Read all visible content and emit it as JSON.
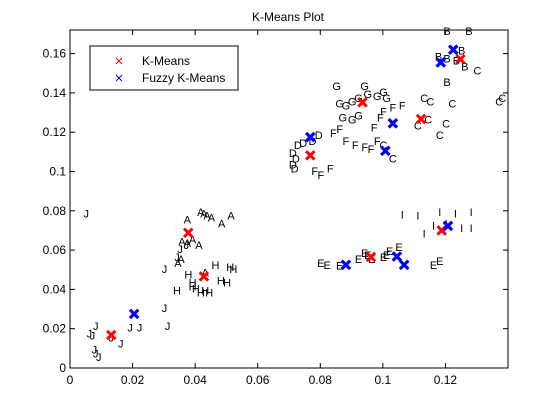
{
  "chart_data": {
    "type": "scatter",
    "title": "K-Means Plot",
    "xlabel": "",
    "ylabel": "",
    "xlim": [
      0,
      0.14
    ],
    "ylim": [
      0,
      0.172
    ],
    "xticks": [
      0,
      0.02,
      0.04,
      0.06,
      0.08,
      0.1,
      0.12
    ],
    "xtick_labels": [
      "0",
      "0.02",
      "0.04",
      "0.06",
      "0.08",
      "0.1",
      "0.12"
    ],
    "yticks": [
      0,
      0.02,
      0.04,
      0.06,
      0.08,
      0.1,
      0.12,
      0.14,
      0.16
    ],
    "ytick_labels": [
      "0",
      "0.02",
      "0.04",
      "0.06",
      "0.08",
      "0.1",
      "0.12",
      "0.14",
      "0.16"
    ],
    "grid": false,
    "legend_position": "top-left",
    "series": [
      {
        "name": "K-Means",
        "marker": "x",
        "color": "#ff0000",
        "x": [
          0.0132,
          0.0378,
          0.0428,
          0.0768,
          0.0935,
          0.0962,
          0.1122,
          0.1188,
          0.1248
        ],
        "y": [
          0.0168,
          0.0688,
          0.0466,
          0.1082,
          0.1352,
          0.0565,
          0.1267,
          0.07,
          0.1571
        ]
      },
      {
        "name": "Fuzzy K-Means",
        "marker": "x",
        "color": "#0000ff",
        "x": [
          0.0205,
          0.0768,
          0.0882,
          0.1008,
          0.1032,
          0.1045,
          0.1068,
          0.1185,
          0.1208,
          0.1225
        ],
        "y": [
          0.0275,
          0.1175,
          0.0525,
          0.1105,
          0.1245,
          0.0567,
          0.0525,
          0.1555,
          0.0723,
          0.162
        ]
      }
    ],
    "point_labels": {
      "A": [
        [
          0.0375,
          0.0755
        ],
        [
          0.0418,
          0.0795
        ],
        [
          0.0428,
          0.0785
        ],
        [
          0.0438,
          0.0775
        ],
        [
          0.0452,
          0.0765
        ],
        [
          0.0485,
          0.0735
        ],
        [
          0.0515,
          0.0775
        ],
        [
          0.0358,
          0.0645
        ],
        [
          0.0375,
          0.0635
        ],
        [
          0.0392,
          0.0655
        ],
        [
          0.0345,
          0.0535
        ],
        [
          0.0355,
          0.0555
        ],
        [
          0.0412,
          0.0625
        ],
        [
          0.0432,
          0.0485
        ]
      ],
      "B": [
        [
          0.1205,
          0.1715
        ],
        [
          0.1275,
          0.1715
        ],
        [
          0.1178,
          0.1585
        ],
        [
          0.1205,
          0.1575
        ],
        [
          0.1235,
          0.1565
        ],
        [
          0.1252,
          0.1615
        ],
        [
          0.1262,
          0.1535
        ],
        [
          0.1205,
          0.1455
        ]
      ],
      "C": [
        [
          0.1302,
          0.1515
        ],
        [
          0.1132,
          0.1375
        ],
        [
          0.1152,
          0.1355
        ],
        [
          0.1222,
          0.1345
        ],
        [
          0.1145,
          0.1265
        ],
        [
          0.1112,
          0.1235
        ],
        [
          0.1182,
          0.1185
        ],
        [
          0.1202,
          0.1245
        ],
        [
          0.1002,
          0.1135
        ],
        [
          0.1032,
          0.1065
        ],
        [
          0.1372,
          0.1355
        ],
        [
          0.1382,
          0.1375
        ]
      ],
      "D": [
        [
          0.0728,
          0.1135
        ],
        [
          0.0745,
          0.1145
        ],
        [
          0.0775,
          0.1155
        ],
        [
          0.0795,
          0.1185
        ],
        [
          0.0712,
          0.1095
        ],
        [
          0.0722,
          0.1065
        ],
        [
          0.0712,
          0.1035
        ],
        [
          0.0718,
          0.1015
        ]
      ],
      "E": [
        [
          0.0802,
          0.0535
        ],
        [
          0.0822,
          0.0525
        ],
        [
          0.0862,
          0.0522
        ],
        [
          0.0922,
          0.0555
        ],
        [
          0.0942,
          0.0585
        ],
        [
          0.0952,
          0.0575
        ],
        [
          0.0965,
          0.0555
        ],
        [
          0.1002,
          0.0565
        ],
        [
          0.1012,
          0.0575
        ],
        [
          0.1022,
          0.0595
        ],
        [
          0.1052,
          0.0615
        ],
        [
          0.1162,
          0.0525
        ],
        [
          0.1182,
          0.0545
        ]
      ],
      "F": [
        [
          0.0842,
          0.1195
        ],
        [
          0.0862,
          0.1215
        ],
        [
          0.0882,
          0.1155
        ],
        [
          0.0912,
          0.1135
        ],
        [
          0.0942,
          0.1125
        ],
        [
          0.0962,
          0.1115
        ],
        [
          0.0982,
          0.1155
        ],
        [
          0.0972,
          0.1225
        ],
        [
          0.0992,
          0.1275
        ],
        [
          0.1002,
          0.1305
        ],
        [
          0.1032,
          0.1325
        ],
        [
          0.1062,
          0.1335
        ],
        [
          0.0782,
          0.1002
        ],
        [
          0.0802,
          0.0982
        ],
        [
          0.0832,
          0.1015
        ]
      ],
      "G": [
        [
          0.0852,
          0.1435
        ],
        [
          0.0862,
          0.1345
        ],
        [
          0.0882,
          0.1335
        ],
        [
          0.0902,
          0.1355
        ],
        [
          0.0922,
          0.1375
        ],
        [
          0.0942,
          0.1435
        ],
        [
          0.0952,
          0.1395
        ],
        [
          0.0982,
          0.1385
        ],
        [
          0.1002,
          0.1405
        ],
        [
          0.1012,
          0.1375
        ],
        [
          0.0872,
          0.1275
        ],
        [
          0.0902,
          0.1265
        ],
        [
          0.0922,
          0.1285
        ]
      ],
      "H": [
        [
          0.0342,
          0.0395
        ],
        [
          0.0378,
          0.0475
        ],
        [
          0.0392,
          0.0435
        ],
        [
          0.0392,
          0.0415
        ],
        [
          0.0402,
          0.0405
        ],
        [
          0.0418,
          0.0385
        ],
        [
          0.0432,
          0.0395
        ],
        [
          0.0445,
          0.0385
        ],
        [
          0.0465,
          0.0525
        ],
        [
          0.0482,
          0.0445
        ],
        [
          0.0502,
          0.0435
        ],
        [
          0.0512,
          0.0515
        ],
        [
          0.0522,
          0.0505
        ]
      ],
      "I": [
        [
          0.1062,
          0.0782
        ],
        [
          0.1112,
          0.0775
        ],
        [
          0.1132,
          0.0685
        ],
        [
          0.1162,
          0.0725
        ],
        [
          0.1182,
          0.0795
        ],
        [
          0.1202,
          0.0735
        ],
        [
          0.1232,
          0.0785
        ],
        [
          0.1252,
          0.0712
        ],
        [
          0.1282,
          0.0712
        ],
        [
          0.1282,
          0.0795
        ]
      ],
      "J": [
        [
          0.0052,
          0.0785
        ],
        [
          0.0082,
          0.0215
        ],
        [
          0.0062,
          0.0175
        ],
        [
          0.0072,
          0.0165
        ],
        [
          0.0078,
          0.0095
        ],
        [
          0.0082,
          0.0075
        ],
        [
          0.0092,
          0.0055
        ],
        [
          0.0132,
          0.0155
        ],
        [
          0.0162,
          0.0125
        ],
        [
          0.0192,
          0.0205
        ],
        [
          0.0222,
          0.0205
        ],
        [
          0.0312,
          0.0215
        ],
        [
          0.0302,
          0.0305
        ],
        [
          0.0342,
          0.0565
        ],
        [
          0.0352,
          0.0605
        ],
        [
          0.0372,
          0.0625
        ],
        [
          0.0302,
          0.0505
        ]
      ]
    }
  }
}
